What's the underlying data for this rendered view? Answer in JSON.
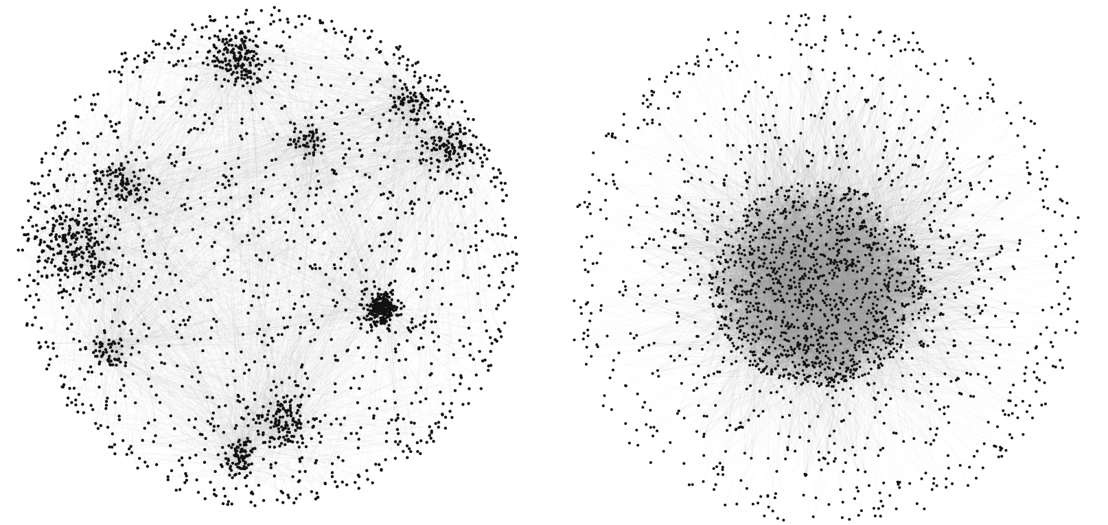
{
  "figure": {
    "background": "#ffffff",
    "node_color": "#111111",
    "edge_color": "#9a9a9a",
    "panels": [
      {
        "id": "left-network",
        "description_word": "clustered",
        "clusters": [
          {
            "name": "top-cluster"
          },
          {
            "name": "upper-right-cluster"
          },
          {
            "name": "right-cluster"
          },
          {
            "name": "left-cluster"
          },
          {
            "name": "upper-left-cluster"
          },
          {
            "name": "center-right-dense-cluster"
          },
          {
            "name": "bottom-cluster"
          },
          {
            "name": "bottom-left-cluster"
          },
          {
            "name": "lower-left-cluster"
          },
          {
            "name": "middle-cluster"
          }
        ]
      },
      {
        "id": "right-network",
        "description_word": "core-periphery"
      }
    ]
  }
}
